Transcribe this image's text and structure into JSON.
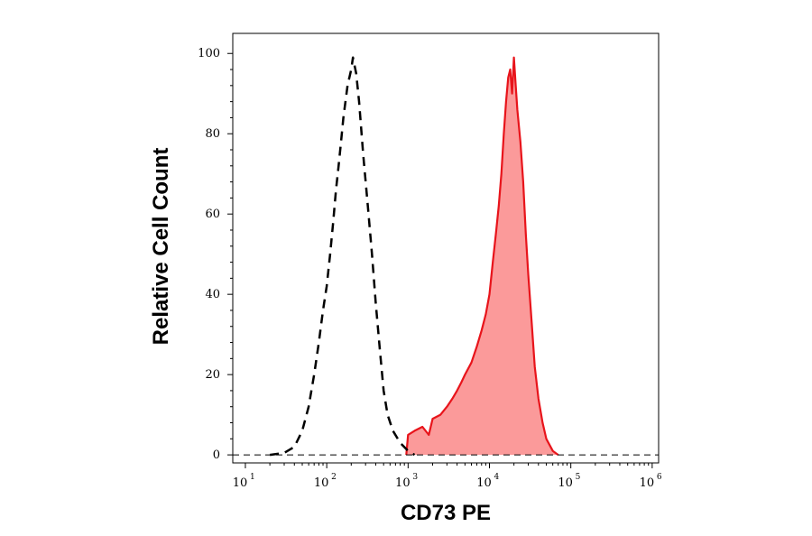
{
  "chart_data": {
    "type": "area",
    "xlabel": "CD73 PE",
    "ylabel": "Relative Cell Count",
    "x_scale": "log",
    "xlim": [
      7,
      1200000
    ],
    "ylim": [
      -2,
      105
    ],
    "x_ticks": [
      {
        "base": "10",
        "exp": "1",
        "value": 10
      },
      {
        "base": "10",
        "exp": "2",
        "value": 100
      },
      {
        "base": "10",
        "exp": "3",
        "value": 1000
      },
      {
        "base": "10",
        "exp": "4",
        "value": 10000
      },
      {
        "base": "10",
        "exp": "5",
        "value": 100000
      },
      {
        "base": "10",
        "exp": "6",
        "value": 1000000
      }
    ],
    "y_ticks": [
      "0",
      "20",
      "40",
      "60",
      "80",
      "100"
    ],
    "grid": false,
    "series": [
      {
        "style": "dashed",
        "color": "#000000",
        "filled": false,
        "points": [
          [
            20,
            0
          ],
          [
            30,
            0.5
          ],
          [
            40,
            2
          ],
          [
            50,
            6
          ],
          [
            60,
            12
          ],
          [
            70,
            20
          ],
          [
            80,
            28
          ],
          [
            90,
            36
          ],
          [
            100,
            42
          ],
          [
            110,
            50
          ],
          [
            120,
            58
          ],
          [
            130,
            66
          ],
          [
            140,
            72
          ],
          [
            150,
            78
          ],
          [
            160,
            84
          ],
          [
            170,
            88
          ],
          [
            180,
            92
          ],
          [
            200,
            96
          ],
          [
            210,
            99
          ],
          [
            230,
            95
          ],
          [
            250,
            88
          ],
          [
            280,
            75
          ],
          [
            320,
            62
          ],
          [
            360,
            50
          ],
          [
            400,
            38
          ],
          [
            450,
            26
          ],
          [
            500,
            16
          ],
          [
            560,
            10
          ],
          [
            650,
            6
          ],
          [
            800,
            3
          ],
          [
            1000,
            1
          ],
          [
            1200,
            0
          ]
        ]
      },
      {
        "style": "solid",
        "color": "#e8141b",
        "fill_color": "#fb9a9a",
        "filled": true,
        "points": [
          [
            950,
            0
          ],
          [
            1000,
            5
          ],
          [
            1200,
            6
          ],
          [
            1500,
            7
          ],
          [
            1800,
            5
          ],
          [
            2000,
            9
          ],
          [
            2500,
            10
          ],
          [
            3000,
            12
          ],
          [
            3500,
            14
          ],
          [
            4000,
            16
          ],
          [
            4500,
            18
          ],
          [
            5000,
            20
          ],
          [
            6000,
            23
          ],
          [
            7000,
            27
          ],
          [
            8000,
            31
          ],
          [
            9000,
            35
          ],
          [
            10000,
            40
          ],
          [
            11000,
            48
          ],
          [
            12000,
            55
          ],
          [
            13000,
            62
          ],
          [
            14000,
            70
          ],
          [
            15000,
            80
          ],
          [
            16000,
            88
          ],
          [
            17000,
            94
          ],
          [
            18000,
            96
          ],
          [
            19000,
            90
          ],
          [
            20000,
            99
          ],
          [
            21000,
            92
          ],
          [
            22000,
            86
          ],
          [
            24000,
            78
          ],
          [
            26000,
            68
          ],
          [
            28000,
            55
          ],
          [
            30000,
            45
          ],
          [
            33000,
            33
          ],
          [
            36000,
            22
          ],
          [
            40000,
            14
          ],
          [
            45000,
            8
          ],
          [
            50000,
            4
          ],
          [
            60000,
            1
          ],
          [
            70000,
            0
          ]
        ]
      }
    ]
  }
}
